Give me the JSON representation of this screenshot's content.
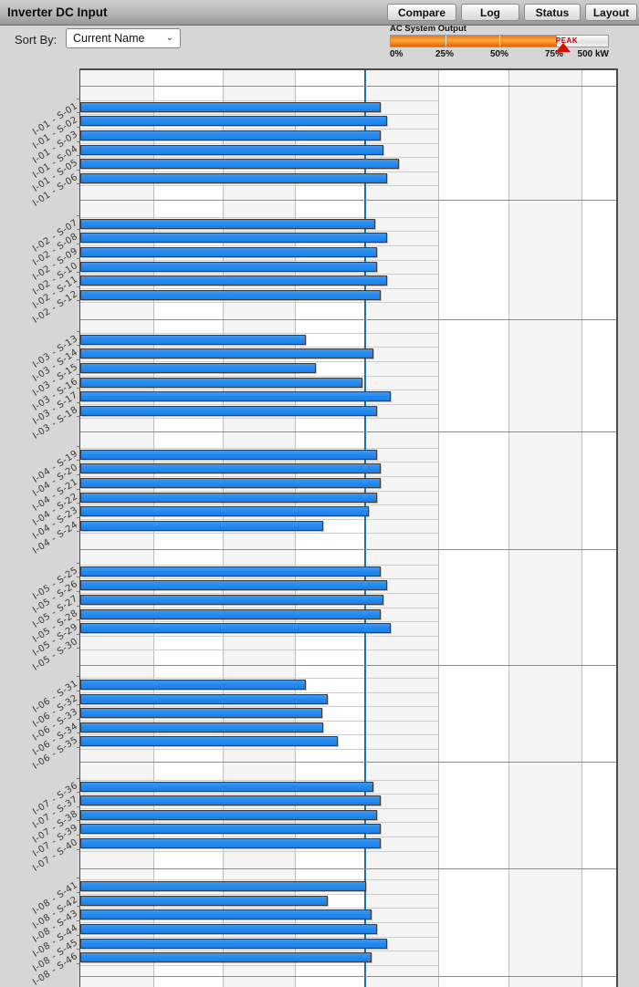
{
  "header": {
    "title": "Inverter DC Input",
    "buttons": [
      {
        "label": "Compare"
      },
      {
        "label": "Log"
      },
      {
        "label": "Status"
      },
      {
        "label": "Layout"
      }
    ]
  },
  "controls": {
    "sort_by_label": "Sort By:",
    "sort_value": "Current Name"
  },
  "gauge": {
    "title": "AC System Output",
    "tick_labels": [
      "0%",
      "25%",
      "50%",
      "75%"
    ],
    "max_label": "500 kW",
    "peak_label": "PEAK",
    "fill_percent": 76.5,
    "peak_percent": 79,
    "fill_color": "#ff8a00"
  },
  "chart_data": {
    "type": "bar",
    "orientation": "horizontal",
    "title": "Inverter DC Input",
    "xlabel": "",
    "ylabel": "",
    "axis_note": "x axis has unlabeled gridlines; bar values recorded as percent of plot width",
    "xlim_percent": [
      0,
      100
    ],
    "reference_line_percent": 53.1,
    "reference_line_color": "#176fb5",
    "bar_color": "#2189f0",
    "groups": [
      {
        "inverter": "I-01",
        "strings": [
          {
            "label": "I-01 - S-01",
            "value_pct": 56.0
          },
          {
            "label": "I-01 - S-02",
            "value_pct": 57.3
          },
          {
            "label": "I-01 - S-03",
            "value_pct": 56.0
          },
          {
            "label": "I-01 - S-04",
            "value_pct": 56.6
          },
          {
            "label": "I-01 - S-05",
            "value_pct": 59.5
          },
          {
            "label": "I-01 - S-06",
            "value_pct": 57.3
          }
        ]
      },
      {
        "inverter": "I-02",
        "strings": [
          {
            "label": "I-02 - S-07",
            "value_pct": 55.1
          },
          {
            "label": "I-02 - S-08",
            "value_pct": 57.3
          },
          {
            "label": "I-02 - S-09",
            "value_pct": 55.3
          },
          {
            "label": "I-02 - S-10",
            "value_pct": 55.3
          },
          {
            "label": "I-02 - S-11",
            "value_pct": 57.3
          },
          {
            "label": "I-02 - S-12",
            "value_pct": 56.0
          }
        ]
      },
      {
        "inverter": "I-03",
        "strings": [
          {
            "label": "I-03 - S-13",
            "value_pct": 42.0
          },
          {
            "label": "I-03 - S-14",
            "value_pct": 54.6
          },
          {
            "label": "I-03 - S-15",
            "value_pct": 44.0
          },
          {
            "label": "I-03 - S-16",
            "value_pct": 52.7
          },
          {
            "label": "I-03 - S-17",
            "value_pct": 58.0
          },
          {
            "label": "I-03 - S-18",
            "value_pct": 55.3
          }
        ]
      },
      {
        "inverter": "I-04",
        "strings": [
          {
            "label": "I-04 - S-19",
            "value_pct": 55.3
          },
          {
            "label": "I-04 - S-20",
            "value_pct": 56.0
          },
          {
            "label": "I-04 - S-21",
            "value_pct": 56.0
          },
          {
            "label": "I-04 - S-22",
            "value_pct": 55.3
          },
          {
            "label": "I-04 - S-23",
            "value_pct": 53.9
          },
          {
            "label": "I-04 - S-24",
            "value_pct": 45.4
          }
        ]
      },
      {
        "inverter": "I-05",
        "strings": [
          {
            "label": "I-05 - S-25",
            "value_pct": 56.0
          },
          {
            "label": "I-05 - S-26",
            "value_pct": 57.3
          },
          {
            "label": "I-05 - S-27",
            "value_pct": 56.6
          },
          {
            "label": "I-05 - S-28",
            "value_pct": 56.0
          },
          {
            "label": "I-05 - S-29",
            "value_pct": 58.0
          },
          {
            "label": "I-05 - S-30",
            "value_pct": 0
          }
        ]
      },
      {
        "inverter": "I-06",
        "strings": [
          {
            "label": "I-06 - S-31",
            "value_pct": 42.0
          },
          {
            "label": "I-06 - S-32",
            "value_pct": 46.1
          },
          {
            "label": "I-06 - S-33",
            "value_pct": 45.2
          },
          {
            "label": "I-06 - S-34",
            "value_pct": 45.4
          },
          {
            "label": "I-06 - S-35",
            "value_pct": 48.0
          }
        ]
      },
      {
        "inverter": "I-07",
        "strings": [
          {
            "label": "I-07 - S-36",
            "value_pct": 54.6
          },
          {
            "label": "I-07 - S-37",
            "value_pct": 56.0
          },
          {
            "label": "I-07 - S-38",
            "value_pct": 55.3
          },
          {
            "label": "I-07 - S-39",
            "value_pct": 56.0
          },
          {
            "label": "I-07 - S-40",
            "value_pct": 56.0
          }
        ]
      },
      {
        "inverter": "I-08",
        "strings": [
          {
            "label": "I-08 - S-41",
            "value_pct": 53.4
          },
          {
            "label": "I-08 - S-42",
            "value_pct": 46.1
          },
          {
            "label": "I-08 - S-43",
            "value_pct": 54.4
          },
          {
            "label": "I-08 - S-44",
            "value_pct": 55.3
          },
          {
            "label": "I-08 - S-45",
            "value_pct": 57.3
          },
          {
            "label": "I-08 - S-46",
            "value_pct": 54.4
          }
        ]
      }
    ]
  }
}
